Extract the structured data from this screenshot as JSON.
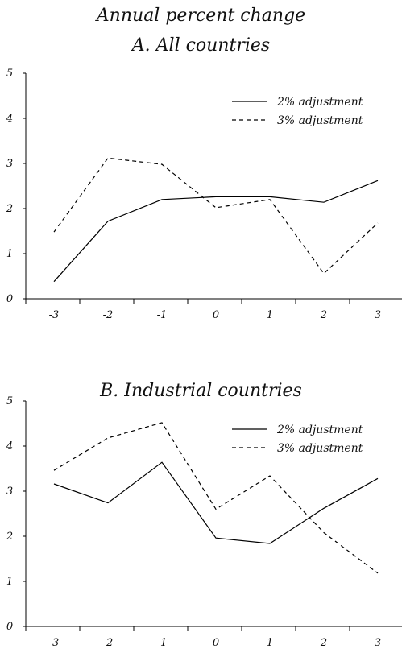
{
  "figure": {
    "title": "Annual percent change"
  },
  "chart_data": [
    {
      "type": "line",
      "title": "A. All countries",
      "x": [
        "-3",
        "-2",
        "-1",
        "0",
        "1",
        "2",
        "3"
      ],
      "ylim": [
        0,
        5
      ],
      "yticks": [
        "0",
        "1",
        "2",
        "3",
        "4",
        "5"
      ],
      "grid": false,
      "legend_position": "top-right",
      "series": [
        {
          "name": "2% adjustment",
          "style": "solid",
          "color": "#000000",
          "values": [
            0.38,
            1.72,
            2.2,
            2.26,
            2.26,
            2.14,
            2.62
          ]
        },
        {
          "name": "3% adjustment",
          "style": "dashed",
          "color": "#000000",
          "values": [
            1.48,
            3.12,
            2.98,
            2.02,
            2.2,
            0.56,
            1.68
          ]
        }
      ]
    },
    {
      "type": "line",
      "title": "B. Industrial countries",
      "x": [
        "-3",
        "-2",
        "-1",
        "0",
        "1",
        "2",
        "3"
      ],
      "ylim": [
        0,
        5
      ],
      "yticks": [
        "0",
        "1",
        "2",
        "3",
        "4",
        "5"
      ],
      "grid": false,
      "legend_position": "top-right",
      "series": [
        {
          "name": "2% adjustment",
          "style": "solid",
          "color": "#000000",
          "values": [
            3.16,
            2.74,
            3.64,
            1.96,
            1.84,
            2.62,
            3.28
          ]
        },
        {
          "name": "3% adjustment",
          "style": "dashed",
          "color": "#000000",
          "values": [
            3.46,
            4.18,
            4.52,
            2.6,
            3.34,
            2.08,
            1.18
          ]
        }
      ]
    }
  ]
}
